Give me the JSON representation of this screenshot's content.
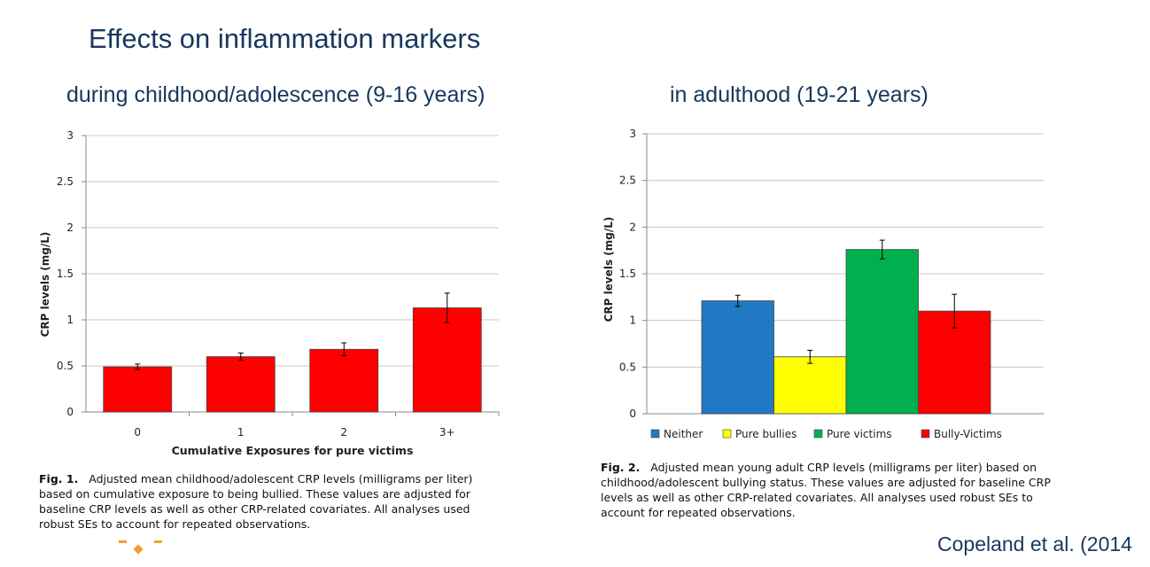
{
  "slide": {
    "title": "Effects on inflammation markers",
    "subtitle_left": "during childhood/adolescence (9-16 years)",
    "subtitle_right": "in adulthood (19-21 years)",
    "citation": "Copeland et al. (2014"
  },
  "chart_data": [
    {
      "type": "bar",
      "title": "",
      "xlabel": "Cumulative Exposures for pure victims",
      "ylabel": "CRP levels (mg/L)",
      "categories": [
        "0",
        "1",
        "2",
        "3+"
      ],
      "values": [
        0.49,
        0.6,
        0.68,
        1.13
      ],
      "error": [
        0.03,
        0.04,
        0.07,
        0.16
      ],
      "ylim": [
        0,
        3
      ],
      "yticks": [
        "0",
        "0.5",
        "1",
        "1.5",
        "2",
        "2.5",
        "3"
      ],
      "color": "#ff0000",
      "grid": true,
      "caption_label": "Fig. 1.",
      "caption_text": "Adjusted mean childhood/adolescent CRP levels (milligrams per liter) based on cumulative exposure to being bullied. These values are adjusted for baseline CRP levels as well as other CRP-related covariates. All analyses used robust SEs to account for repeated observations."
    },
    {
      "type": "bar",
      "title": "",
      "xlabel": "",
      "ylabel": "CRP levels (mg/L)",
      "series": [
        {
          "name": "Neither",
          "value": 1.21,
          "error": 0.06,
          "color": "#1f7ac3"
        },
        {
          "name": "Pure bullies",
          "value": 0.61,
          "error": 0.07,
          "color": "#ffff00"
        },
        {
          "name": "Pure victims",
          "value": 1.76,
          "error": 0.1,
          "color": "#00b050"
        },
        {
          "name": "Bully-Victims",
          "value": 1.1,
          "error": 0.18,
          "color": "#ff0000"
        }
      ],
      "ylim": [
        0,
        3
      ],
      "yticks": [
        "0",
        "0.5",
        "1",
        "1.5",
        "2",
        "2.5",
        "3"
      ],
      "grid": true,
      "legend_position": "bottom",
      "caption_label": "Fig. 2.",
      "caption_text": "Adjusted mean young adult CRP levels (milligrams per liter) based on childhood/adolescent bullying status. These values are adjusted for baseline CRP levels as well as other CRP-related covariates. All analyses used robust SEs to account for repeated observations."
    }
  ]
}
